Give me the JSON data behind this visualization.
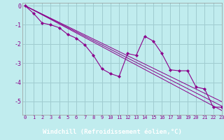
{
  "xlabel": "Windchill (Refroidissement éolien,°C)",
  "bg_color": "#c0ecee",
  "grid_color": "#a0ccd0",
  "line_color": "#8b008b",
  "bottom_bar_color": "#7b2d8b",
  "x_data": [
    0,
    1,
    2,
    3,
    4,
    5,
    6,
    7,
    8,
    9,
    10,
    11,
    12,
    13,
    14,
    15,
    16,
    17,
    18,
    19,
    20,
    21,
    22,
    23
  ],
  "y_data": [
    0.0,
    -0.4,
    -0.9,
    -1.0,
    -1.15,
    -1.5,
    -1.7,
    -2.05,
    -2.6,
    -3.3,
    -3.55,
    -3.7,
    -2.5,
    -2.6,
    -1.6,
    -1.85,
    -2.5,
    -3.35,
    -3.4,
    -3.4,
    -4.25,
    -4.35,
    -5.3,
    -5.3
  ],
  "y_reg1": [
    0.0,
    -0.218,
    -0.436,
    -0.654,
    -0.872,
    -1.09,
    -1.308,
    -1.526,
    -1.744,
    -1.962,
    -2.18,
    -2.398,
    -2.616,
    -2.834,
    -3.052,
    -3.27,
    -3.488,
    -3.706,
    -3.924,
    -4.142,
    -4.36,
    -4.578,
    -4.796,
    -5.014
  ],
  "y_reg2": [
    0.0,
    -0.228,
    -0.456,
    -0.684,
    -0.912,
    -1.14,
    -1.368,
    -1.596,
    -1.824,
    -2.052,
    -2.28,
    -2.508,
    -2.736,
    -2.964,
    -3.192,
    -3.42,
    -3.648,
    -3.876,
    -4.104,
    -4.332,
    -4.56,
    -4.788,
    -5.016,
    -5.244
  ],
  "y_reg3": [
    0.0,
    -0.238,
    -0.476,
    -0.714,
    -0.952,
    -1.19,
    -1.428,
    -1.666,
    -1.904,
    -2.142,
    -2.38,
    -2.618,
    -2.856,
    -3.094,
    -3.332,
    -3.57,
    -3.808,
    -4.046,
    -4.284,
    -4.522,
    -4.76,
    -4.998,
    -5.236,
    -5.474
  ],
  "xlim": [
    -0.3,
    23
  ],
  "ylim": [
    -5.7,
    0.15
  ],
  "yticks": [
    0,
    -1,
    -2,
    -3,
    -4,
    -5
  ],
  "xticks": [
    0,
    1,
    2,
    3,
    4,
    5,
    6,
    7,
    8,
    9,
    10,
    11,
    12,
    13,
    14,
    15,
    16,
    17,
    18,
    19,
    20,
    21,
    22,
    23
  ]
}
